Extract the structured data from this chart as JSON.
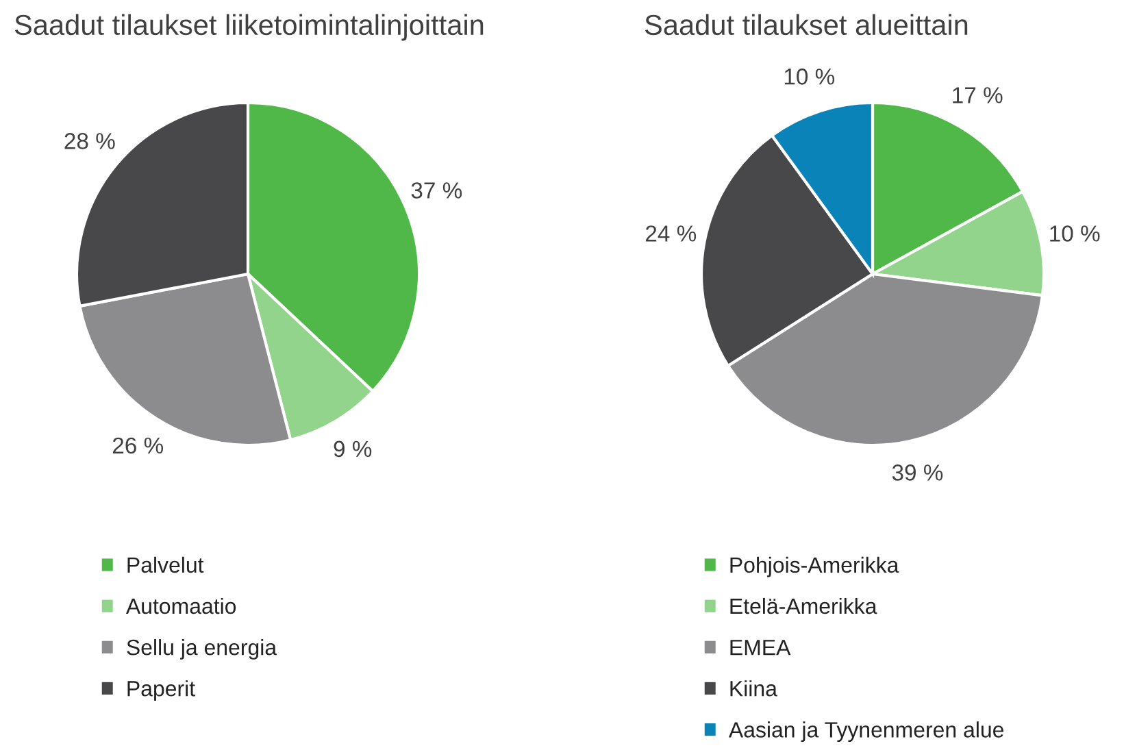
{
  "chart_data": [
    {
      "type": "pie",
      "title": "Saadut tilaukset liiketoimintalinjoittain",
      "categories": [
        "Palvelut",
        "Automaatio",
        "Sellu ja energia",
        "Paperit"
      ],
      "values": [
        37,
        9,
        26,
        28
      ],
      "value_labels": [
        "37 %",
        "9 %",
        "26 %",
        "28 %"
      ],
      "colors": [
        "#50b848",
        "#93d48c",
        "#8c8c8e",
        "#48484a"
      ],
      "legend": "bottom"
    },
    {
      "type": "pie",
      "title": "Saadut tilaukset alueittain",
      "categories": [
        "Pohjois-Amerikka",
        "Etelä-Amerikka",
        "EMEA",
        "Kiina",
        "Aasian ja Tyynenmeren alue"
      ],
      "values": [
        17,
        10,
        39,
        24,
        10
      ],
      "value_labels": [
        "17 %",
        "10 %",
        "39 %",
        "24 %",
        "10 %"
      ],
      "colors": [
        "#50b848",
        "#93d48c",
        "#8c8c8e",
        "#48484a",
        "#0a84b8"
      ],
      "legend": "bottom"
    }
  ]
}
